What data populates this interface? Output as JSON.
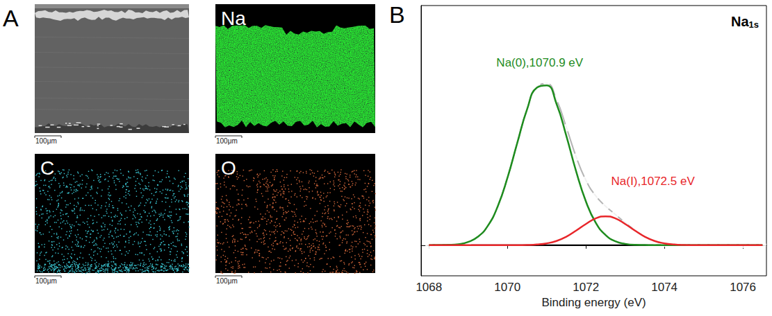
{
  "panel_a": {
    "label": "A",
    "images": [
      {
        "scale_bar": "100μm"
      },
      {
        "element": "Na",
        "scale_bar": "100μm"
      },
      {
        "element": "C",
        "scale_bar": "100μm"
      },
      {
        "element": "O",
        "scale_bar": "100μm"
      }
    ]
  },
  "chart_data": {
    "type": "line",
    "panel_label": "B",
    "title": "Na1s",
    "xlabel": "Binding energy (eV)",
    "xlim": [
      1067.8,
      1076.6
    ],
    "xticks": [
      1068,
      1070,
      1072,
      1074,
      1076
    ],
    "ylim": [
      -0.18,
      1.41
    ],
    "tick_labels": "x",
    "grid": false,
    "x": [
      1068,
      1068.25,
      1068.5,
      1068.75,
      1069,
      1069.25,
      1069.5,
      1069.75,
      1070,
      1070.25,
      1070.5,
      1070.75,
      1071,
      1071.25,
      1071.5,
      1071.75,
      1072,
      1072.25,
      1072.5,
      1072.75,
      1073,
      1073.25,
      1073.5,
      1073.75,
      1074,
      1074.25,
      1074.5,
      1074.75,
      1075,
      1075.25,
      1075.5,
      1075.75,
      1076,
      1076.25,
      1076.5
    ],
    "series": [
      {
        "type": "line",
        "color": "#b4b4b4",
        "line_style": "solid",
        "values": [
          0,
          0.001,
          0.002,
          0.006,
          0.019,
          0.05,
          0.114,
          0.227,
          0.396,
          0.601,
          0.8,
          0.931,
          0.951,
          0.857,
          0.694,
          0.521,
          0.382,
          0.29,
          0.23,
          0.181,
          0.133,
          0.088,
          0.051,
          0.025,
          0.011,
          0.004,
          0.001,
          0,
          0,
          0,
          0,
          0,
          0,
          0,
          0
        ]
      },
      {
        "type": "scatter",
        "color": "#808080",
        "marker": "open_circle",
        "values": [
          0.001,
          0,
          0.002,
          0.007,
          0.018,
          0.052,
          0.116,
          0.229,
          0.398,
          0.603,
          0.805,
          0.938,
          0.962,
          0.862,
          0.69,
          0.518,
          0.384,
          0.292,
          0.228,
          0.183,
          0.135,
          0.086,
          0.05,
          0.027,
          0.012,
          0.003,
          0,
          0.002,
          -0.001,
          0.001,
          0.003,
          0.012,
          0.006,
          -0.002,
          0.001
        ]
      },
      {
        "type": "line",
        "name": "Na(0),1070.9 eV",
        "color": "#1e8c1e",
        "line_style": "solid",
        "values": [
          0,
          0.001,
          0.002,
          0.006,
          0.019,
          0.05,
          0.114,
          0.227,
          0.396,
          0.601,
          0.799,
          0.927,
          0.94,
          0.832,
          0.644,
          0.435,
          0.257,
          0.132,
          0.06,
          0.023,
          0.008,
          0.002,
          0.001,
          0,
          0,
          0,
          0,
          0,
          0,
          0,
          0,
          0,
          0,
          0,
          0
        ]
      },
      {
        "type": "line",
        "name": "Na(Ⅰ),1072.5 eV",
        "color": "#e8262a",
        "line_style": "solid",
        "values": [
          0,
          0,
          0,
          0,
          0,
          0,
          0,
          0,
          0,
          0,
          0.001,
          0.004,
          0.011,
          0.025,
          0.05,
          0.086,
          0.125,
          0.158,
          0.17,
          0.158,
          0.125,
          0.086,
          0.05,
          0.025,
          0.011,
          0.004,
          0.001,
          0,
          0,
          0,
          0,
          0,
          0,
          0,
          0
        ]
      },
      {
        "type": "line",
        "color": "#000000",
        "line_style": "solid",
        "values": [
          0,
          0,
          0,
          0,
          0,
          0,
          0,
          0,
          0,
          0,
          0,
          0,
          0,
          0,
          0,
          0,
          0,
          0,
          0,
          0,
          0,
          0,
          0,
          0,
          0,
          0,
          0,
          0,
          0,
          0,
          0,
          0,
          0,
          0,
          0
        ]
      }
    ]
  }
}
